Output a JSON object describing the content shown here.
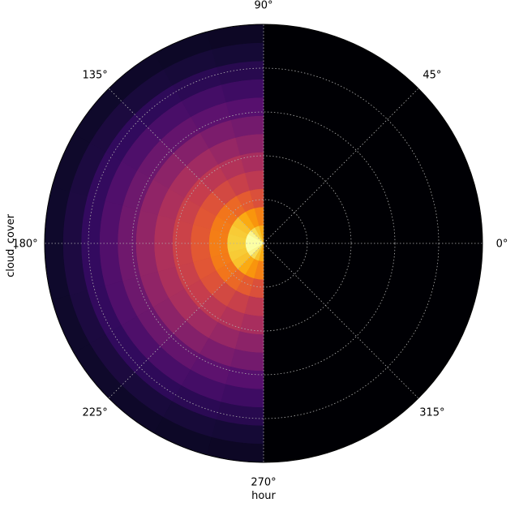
{
  "chart_data": {
    "type": "heatmap",
    "projection": "polar",
    "xlabel": "hour",
    "ylabel": "cloud_cover",
    "angle_tick_labels": [
      "0°",
      "45°",
      "90°",
      "135°",
      "180°",
      "225°",
      "270°",
      "315°"
    ],
    "angle_ticks_deg": [
      0,
      45,
      90,
      135,
      180,
      225,
      270,
      315
    ],
    "radial_gridlines": 5,
    "grid": true,
    "colormap": [
      "#000004",
      "#110a30",
      "#320a5e",
      "#57106e",
      "#7d1d6c",
      "#a32c61",
      "#c43c4e",
      "#e25734",
      "#f37819",
      "#fca108",
      "#f7d13d",
      "#fcffa4"
    ],
    "angular_sectors_deg": [
      90,
      270
    ],
    "radial_bins": 12,
    "radial_profile": [
      0.98,
      0.88,
      0.72,
      0.62,
      0.55,
      0.47,
      0.4,
      0.32,
      0.25,
      0.18,
      0.12,
      0.08
    ],
    "angular_modulation": [
      0.85,
      0.9,
      0.95,
      1.0,
      1.02,
      1.03,
      1.03,
      1.02,
      1.0,
      0.95,
      0.9,
      0.85
    ],
    "empty_sector_value": 0
  }
}
